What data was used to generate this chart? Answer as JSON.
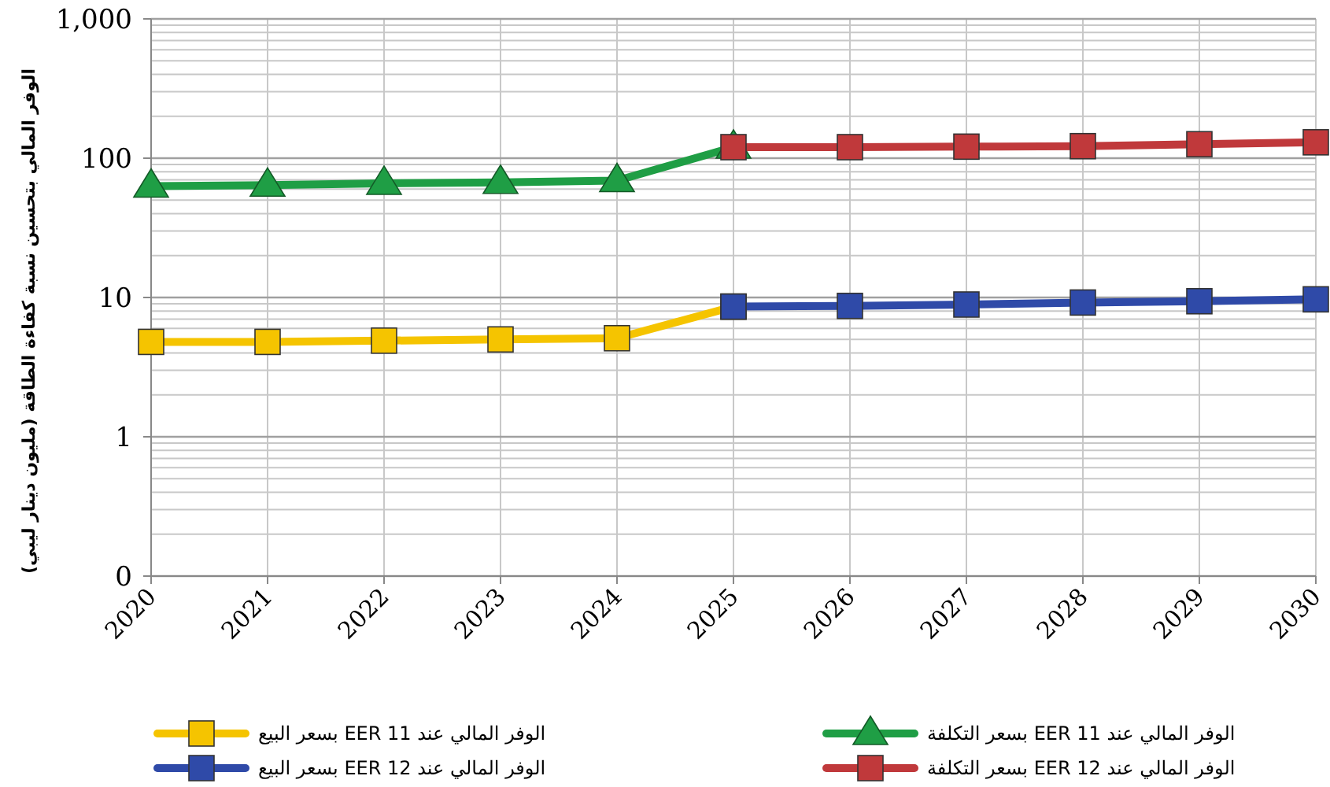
{
  "chart_data": {
    "type": "line",
    "ylabel": "الوفر المالي بتحسين نسبة كفاءة الطاقة (مليون دينار ليبي)",
    "categories": [
      "2020",
      "2021",
      "2022",
      "2023",
      "2024",
      "2025",
      "2026",
      "2027",
      "2028",
      "2029",
      "2030"
    ],
    "log": true,
    "ylim": [
      0.1,
      1000
    ],
    "yticks": [
      {
        "value": 0.1,
        "label": "0"
      },
      1,
      10,
      100,
      {
        "value": 1000,
        "label": "1,000"
      }
    ],
    "grid": true,
    "legend": "bottom",
    "line_style": "solid",
    "series": [
      {
        "name": "الوفر المالي عند EER 11 بسعر البيع",
        "color": "#f5c400",
        "marker": "square",
        "values": [
          4.8,
          4.8,
          4.9,
          5.0,
          5.1,
          8.6,
          null,
          null,
          null,
          null,
          null
        ]
      },
      {
        "name": "الوفر المالي عند EER 11 بسعر التكلفة",
        "color": "#1f9e45",
        "marker": "triangle",
        "values": [
          63,
          64,
          66,
          67,
          69,
          120,
          null,
          null,
          null,
          null,
          null
        ]
      },
      {
        "name": "الوفر المالي عند EER 12 بسعر البيع",
        "color": "#2f4aa8",
        "marker": "square",
        "values": [
          null,
          null,
          null,
          null,
          null,
          8.6,
          8.7,
          8.9,
          9.2,
          9.4,
          9.7
        ]
      },
      {
        "name": "الوفر المالي عند EER 12 بسعر التكلفة",
        "color": "#c0393b",
        "marker": "square",
        "values": [
          null,
          null,
          null,
          null,
          null,
          120,
          120,
          121,
          122,
          126,
          130
        ]
      }
    ]
  }
}
